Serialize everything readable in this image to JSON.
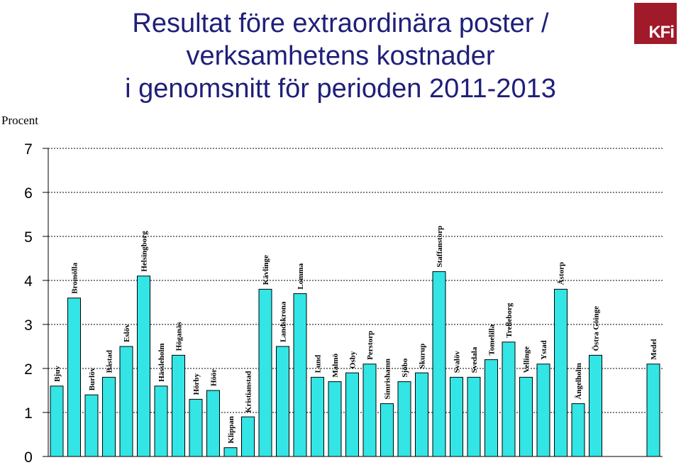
{
  "title_lines": [
    "Resultat före extraordinära poster /",
    "verksamhetens kostnader",
    "i genomsnitt för perioden 2011-2013"
  ],
  "logo_text": "KFi",
  "colors": {
    "title": "#1f1f7a",
    "bar": "#33e5e5",
    "logo": "#a11a2a"
  },
  "chart_data": {
    "type": "bar",
    "title": "Resultat före extraordinära poster / verksamhetens kostnader i genomsnitt för perioden 2011-2013",
    "ylabel": "Procent",
    "xlabel": "",
    "ylim": [
      0,
      7
    ],
    "yticks": [
      0,
      1,
      2,
      3,
      4,
      5,
      6,
      7
    ],
    "grid": "dashed horizontal",
    "categories": [
      "Bjuv",
      "Bromölla",
      "Burlöv",
      "Båstad",
      "Eslöv",
      "Helsingborg",
      "Hässleholm",
      "Höganäs",
      "Hörby",
      "Höör",
      "Klippan",
      "Kristianstad",
      "Kävlinge",
      "Landskrona",
      "Lomma",
      "Lund",
      "Malmö",
      "Osby",
      "Perstorp",
      "Simrishamn",
      "Sjöbo",
      "Skurup",
      "Staffanstorp",
      "Svalöv",
      "Svedala",
      "Tomelilla",
      "Trelleborg",
      "Vellinge",
      "Ystad",
      "Åstorp",
      "Ängelholm",
      "Östra Göinge",
      "Medel"
    ],
    "values": [
      1.6,
      3.6,
      1.4,
      1.8,
      2.5,
      4.1,
      1.6,
      2.3,
      1.3,
      1.5,
      0.2,
      0.9,
      3.8,
      2.5,
      3.7,
      1.8,
      1.7,
      1.9,
      2.1,
      1.2,
      1.7,
      1.9,
      4.2,
      1.8,
      1.8,
      2.2,
      2.6,
      1.8,
      2.1,
      3.8,
      1.2,
      2.3,
      2.1
    ]
  }
}
